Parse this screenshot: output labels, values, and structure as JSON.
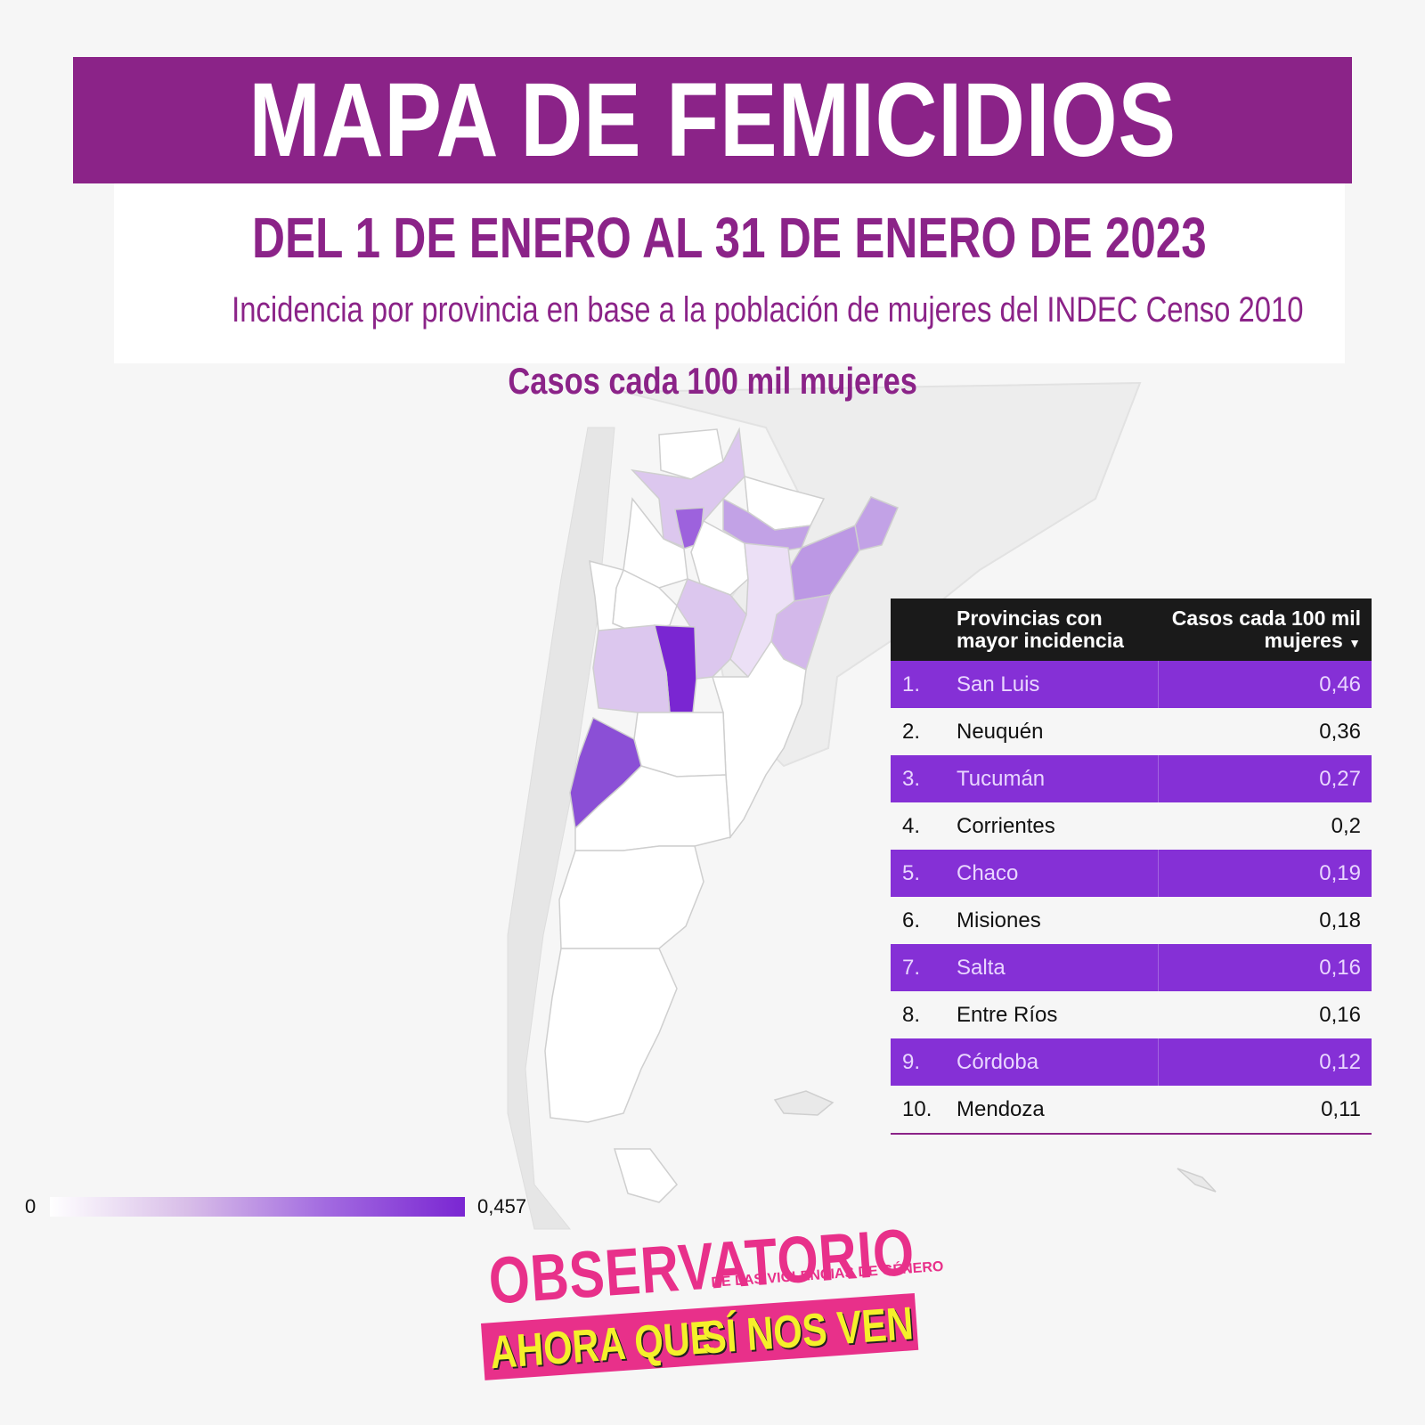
{
  "header": {
    "title": "MAPA DE FEMICIDIOS",
    "date_range": "DEL 1 DE ENERO AL 31 DE ENERO DE 2023",
    "incidence_note": "Incidencia por provincia en base a la población de mujeres del INDEC Censo 2010"
  },
  "map": {
    "caption": "Casos cada 100 mil mujeres",
    "colors": {
      "max": "#7a26d2",
      "high": "#8b4fd6",
      "mid": "#c2a2e6",
      "low": "#dcc7ee",
      "lowest": "#ece0f6",
      "zero": "#ffffff",
      "land": "#e4e4e4",
      "border": "#c9c9c9"
    }
  },
  "ranking": {
    "header_col1": "Provincias con mayor incidencia",
    "header_col2": "Casos cada 100 mil mujeres",
    "sort_icon": "caret-down-icon",
    "rows": [
      {
        "rank": "1.",
        "province": "San Luis",
        "value": "0,46"
      },
      {
        "rank": "2.",
        "province": "Neuquén",
        "value": "0,36"
      },
      {
        "rank": "3.",
        "province": "Tucumán",
        "value": "0,27"
      },
      {
        "rank": "4.",
        "province": "Corrientes",
        "value": "0,2"
      },
      {
        "rank": "5.",
        "province": "Chaco",
        "value": "0,19"
      },
      {
        "rank": "6.",
        "province": "Misiones",
        "value": "0,18"
      },
      {
        "rank": "7.",
        "province": "Salta",
        "value": "0,16"
      },
      {
        "rank": "8.",
        "province": "Entre Ríos",
        "value": "0,16"
      },
      {
        "rank": "9.",
        "province": "Córdoba",
        "value": "0,12"
      },
      {
        "rank": "10.",
        "province": "Mendoza",
        "value": "0,11"
      }
    ],
    "row_color": "#8530d6"
  },
  "legend": {
    "min": "0",
    "max": "0,457"
  },
  "logo": {
    "name": "OBSERVATORIO",
    "subtitle": "DE LAS VIOLENCIAS DE GÉNERO",
    "tagline_left": "AHORA QUE",
    "tagline_right": "SÍ NOS VEN",
    "pink": "#e8308a",
    "yellow": "#f5f02a"
  }
}
